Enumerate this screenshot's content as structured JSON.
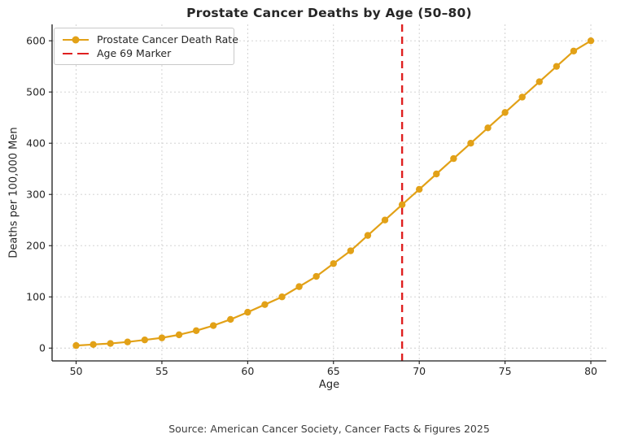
{
  "page": {
    "background": "#ffffff"
  },
  "chart_data": {
    "type": "line",
    "title": "Prostate Cancer Deaths by Age (50–80)",
    "xlabel": "Age",
    "ylabel": "Deaths per 100,000 Men",
    "source_note": "Source: American Cancer Society, Cancer Facts & Figures 2025",
    "x": [
      50,
      51,
      52,
      53,
      54,
      55,
      56,
      57,
      58,
      59,
      60,
      61,
      62,
      63,
      64,
      65,
      66,
      67,
      68,
      69,
      70,
      71,
      72,
      73,
      74,
      75,
      76,
      77,
      78,
      79,
      80
    ],
    "series": [
      {
        "name": "Prostate Cancer Death Rate",
        "color": "#E2A117",
        "marker": "circle",
        "values": [
          5,
          7,
          9,
          12,
          16,
          20,
          26,
          34,
          44,
          56,
          70,
          85,
          100,
          120,
          140,
          165,
          190,
          220,
          250,
          280,
          310,
          340,
          370,
          400,
          430,
          460,
          490,
          520,
          550,
          580,
          600
        ]
      }
    ],
    "vline": {
      "label": "Age 69 Marker",
      "x": 69,
      "color": "#DF2020",
      "style": "dashed"
    },
    "xticks": [
      50,
      55,
      60,
      65,
      70,
      75,
      80
    ],
    "yticks": [
      0,
      100,
      200,
      300,
      400,
      500,
      600
    ],
    "xlim": [
      48.6,
      80.9
    ],
    "ylim": [
      -25,
      632
    ],
    "grid": true,
    "legend_position": "upper-left"
  }
}
